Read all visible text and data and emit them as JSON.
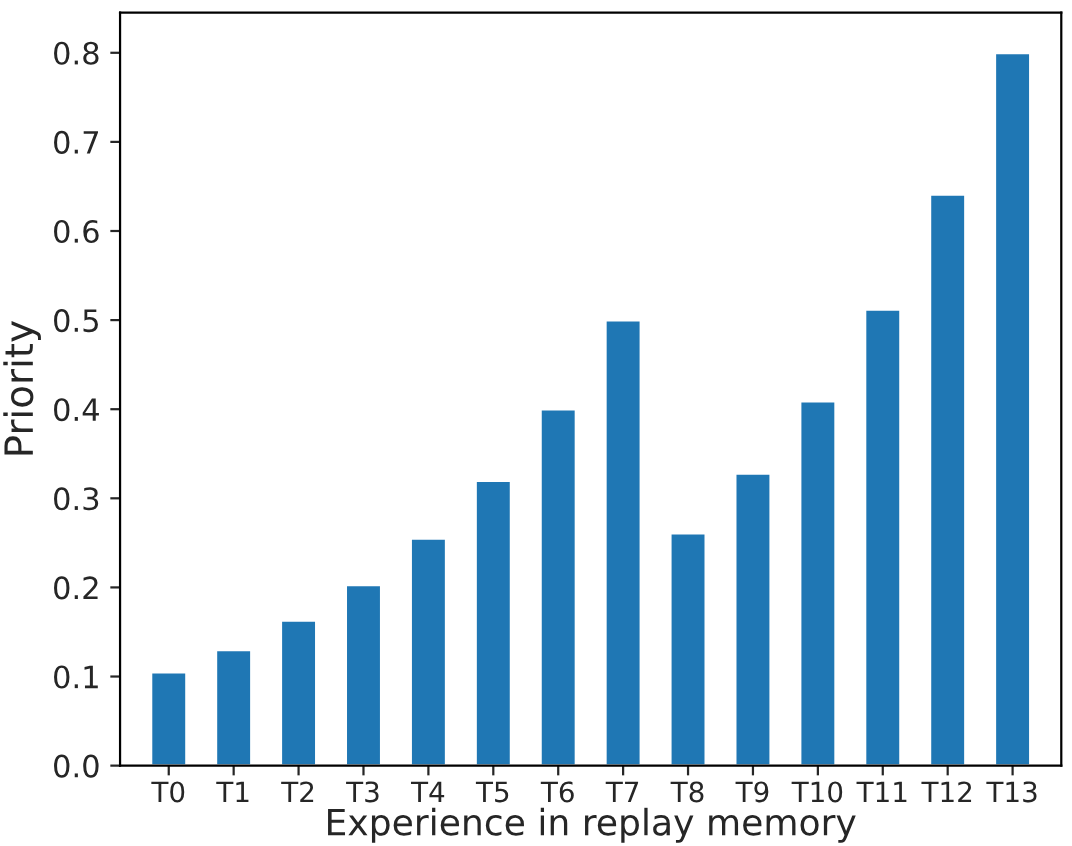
{
  "chart_data": {
    "type": "bar",
    "xlabel": "Experience in replay memory",
    "ylabel": "Priority",
    "categories": [
      "T0",
      "T1",
      "T2",
      "T3",
      "T4",
      "T5",
      "T6",
      "T7",
      "T8",
      "T9",
      "T10",
      "T11",
      "T12",
      "T13"
    ],
    "values": [
      0.105,
      0.13,
      0.163,
      0.203,
      0.255,
      0.32,
      0.4,
      0.5,
      0.261,
      0.328,
      0.409,
      0.512,
      0.641,
      0.8
    ],
    "color": "#1f77b4",
    "ylim": [
      0,
      0.845
    ],
    "yticks": [
      {
        "value": 0,
        "label": "0.0"
      },
      0.1,
      0.2,
      0.3,
      0.4,
      0.5,
      0.6,
      0.7,
      0.8
    ],
    "grid": false
  }
}
